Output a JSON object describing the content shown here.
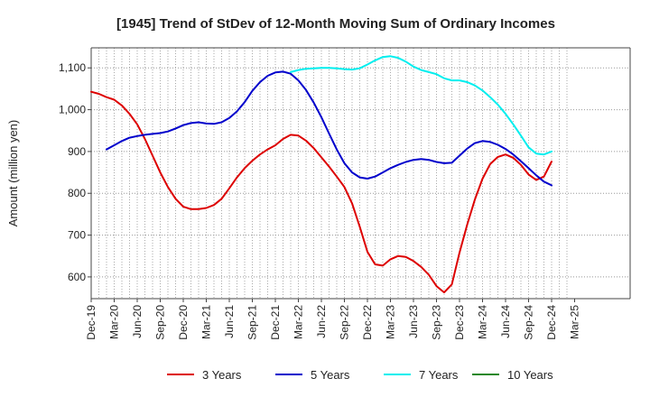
{
  "chart_data": {
    "type": "line",
    "title": "[1945]  Trend of StDev of 12-Month Moving Sum of Ordinary Incomes",
    "xlabel": "",
    "ylabel": "Amount (million yen)",
    "ylim": [
      548,
      1148
    ],
    "yticks": [
      600,
      700,
      800,
      900,
      1000,
      1100
    ],
    "ytick_labels": [
      "600",
      "700",
      "800",
      "900",
      "1,000",
      "1,100"
    ],
    "xticks": [
      "Dec-19",
      "Mar-20",
      "Jun-20",
      "Sep-20",
      "Dec-20",
      "Mar-21",
      "Jun-21",
      "Sep-21",
      "Dec-21",
      "Mar-22",
      "Jun-22",
      "Sep-22",
      "Dec-22",
      "Mar-23",
      "Jun-23",
      "Sep-23",
      "Dec-23",
      "Mar-24",
      "Jun-24",
      "Sep-24",
      "Dec-24",
      "Mar-25"
    ],
    "grid": true,
    "legend_position": "bottom",
    "series": [
      {
        "name": "3 Years",
        "color": "#dd0000",
        "start_index": 0,
        "values": [
          1043,
          1038,
          1030,
          1024,
          1010,
          990,
          965,
          930,
          890,
          850,
          815,
          787,
          768,
          762,
          762,
          765,
          772,
          787,
          812,
          838,
          860,
          878,
          893,
          905,
          915,
          930,
          940,
          938,
          926,
          908,
          886,
          864,
          840,
          815,
          776,
          720,
          660,
          630,
          627,
          642,
          650,
          648,
          638,
          624,
          605,
          578,
          563,
          582,
          658,
          725,
          785,
          835,
          870,
          887,
          893,
          885,
          868,
          845,
          832,
          840,
          876
        ]
      },
      {
        "name": "5 Years",
        "color": "#0000cc",
        "start_index": 2,
        "values": [
          905,
          915,
          925,
          933,
          937,
          940,
          942,
          944,
          948,
          955,
          963,
          968,
          970,
          967,
          966,
          970,
          980,
          996,
          1018,
          1045,
          1066,
          1081,
          1089,
          1091,
          1086,
          1070,
          1047,
          1017,
          982,
          943,
          905,
          872,
          850,
          838,
          835,
          840,
          850,
          860,
          868,
          875,
          880,
          882,
          880,
          875,
          872,
          873,
          890,
          907,
          920,
          925,
          923,
          916,
          906,
          893,
          877,
          860,
          843,
          828,
          819
        ]
      },
      {
        "name": "7 Years",
        "color": "#00eeee",
        "start_index": 26,
        "values": [
          1090,
          1095,
          1098,
          1099,
          1100,
          1100,
          1099,
          1097,
          1096,
          1099,
          1108,
          1118,
          1126,
          1128,
          1124,
          1115,
          1103,
          1095,
          1090,
          1085,
          1075,
          1070,
          1070,
          1066,
          1058,
          1046,
          1030,
          1012,
          990,
          965,
          938,
          910,
          895,
          893,
          900
        ]
      },
      {
        "name": "10 Years",
        "color": "#228822",
        "start_index": 0,
        "values": []
      }
    ]
  }
}
